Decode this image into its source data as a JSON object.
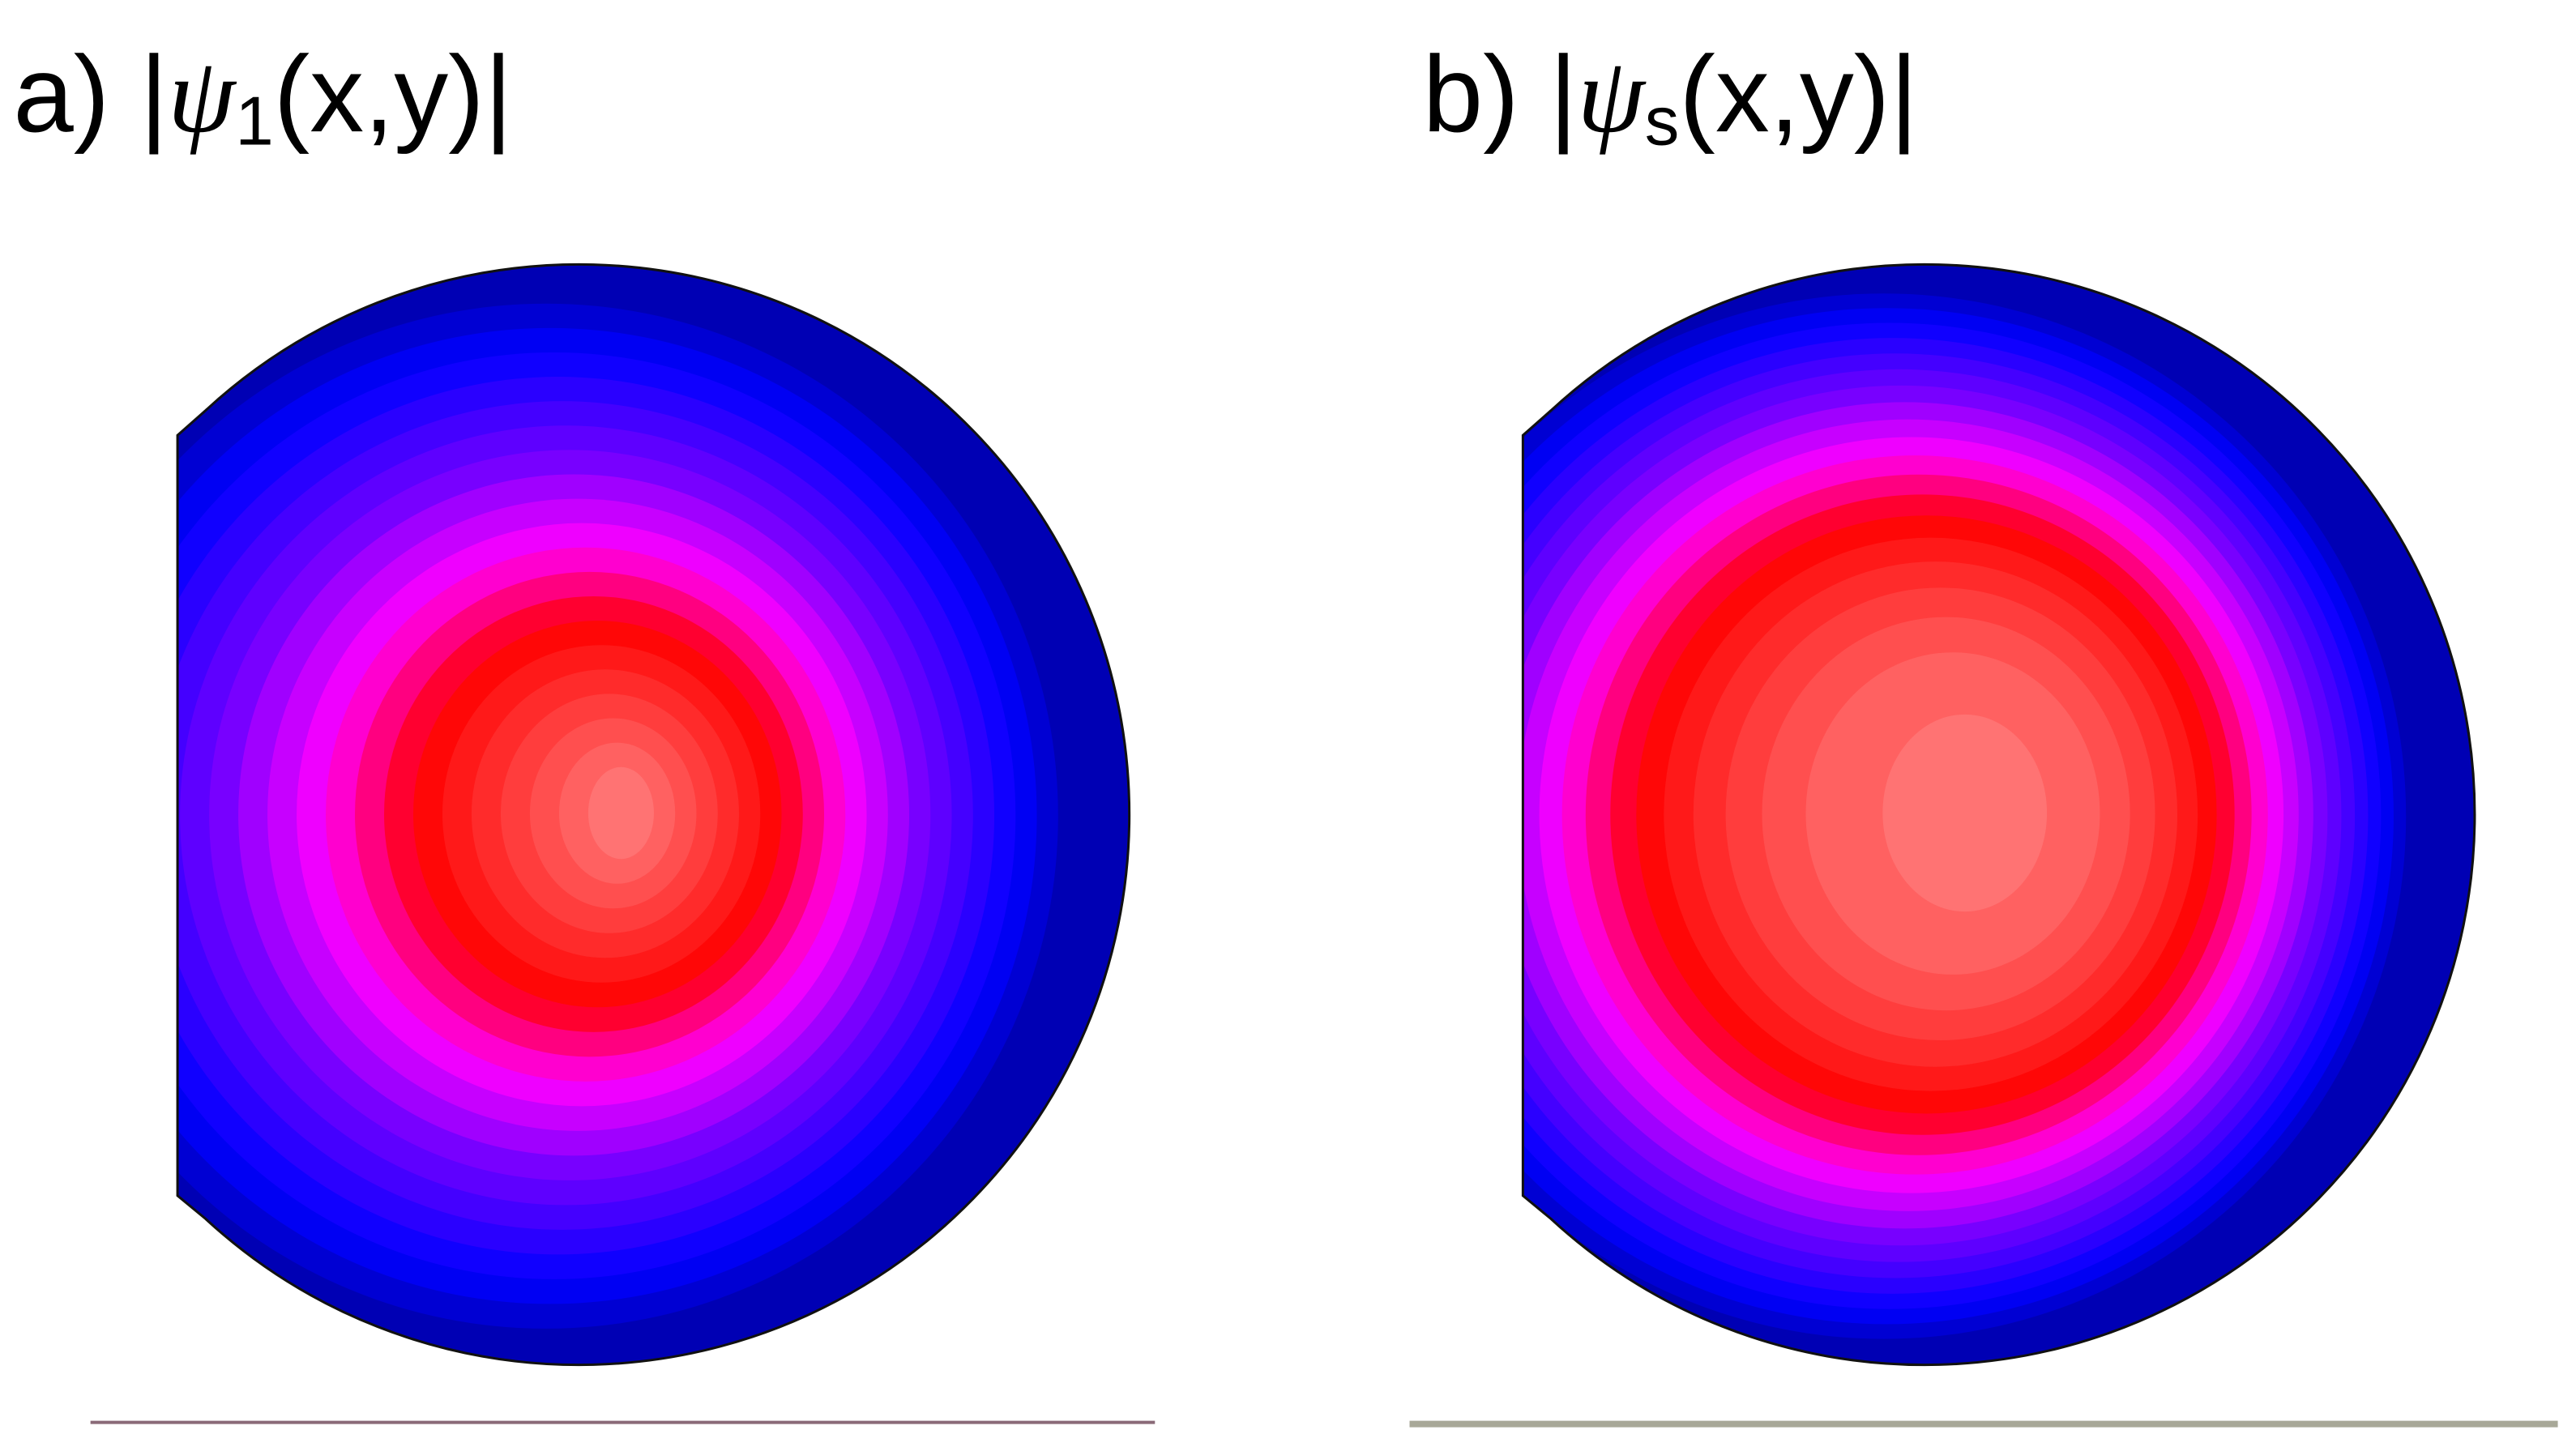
{
  "panels": [
    {
      "label": "a)",
      "open": "|",
      "symbol": "ψ",
      "subscript": "1",
      "close": "(x,y)|"
    },
    {
      "label": "b)",
      "open": "|",
      "symbol": "ψ",
      "subscript": "s",
      "close": "(x,y)|"
    }
  ]
}
